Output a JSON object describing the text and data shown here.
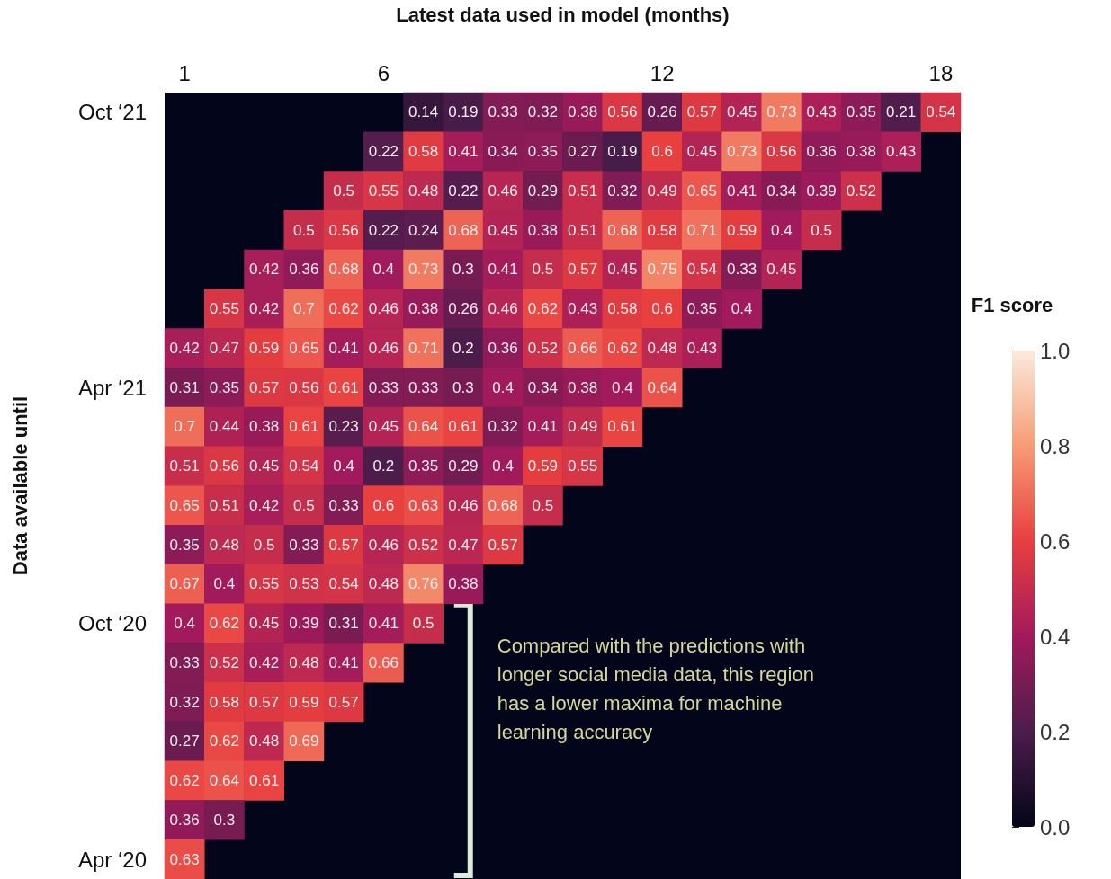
{
  "chart_data": {
    "type": "heatmap",
    "xlabel": "Latest data used in model (months)",
    "ylabel": "Data available until",
    "clabel": "F1 score",
    "categories": [
      "1",
      null,
      null,
      null,
      null,
      "6",
      null,
      null,
      null,
      null,
      null,
      null,
      "12",
      null,
      null,
      null,
      null,
      null,
      null,
      "18"
    ],
    "y_categories": [
      "Oct ‘21",
      null,
      null,
      null,
      null,
      null,
      null,
      "Apr ‘21",
      null,
      null,
      null,
      null,
      null,
      "Oct ‘20",
      null,
      null,
      null,
      null,
      null,
      "Apr ‘20"
    ],
    "cells": [
      [
        null,
        null,
        null,
        null,
        null,
        null,
        0.14,
        0.19,
        0.33,
        0.32,
        0.38,
        0.56,
        0.26,
        0.57,
        0.45,
        0.73,
        0.43,
        0.35,
        0.21,
        0.54
      ],
      [
        null,
        null,
        null,
        null,
        null,
        0.22,
        0.58,
        0.41,
        0.34,
        0.35,
        0.27,
        0.19,
        0.6,
        0.45,
        0.73,
        0.56,
        0.36,
        0.38,
        0.43,
        null
      ],
      [
        null,
        null,
        null,
        null,
        0.5,
        0.55,
        0.48,
        0.22,
        0.46,
        0.29,
        0.51,
        0.32,
        0.49,
        0.65,
        0.41,
        0.34,
        0.39,
        0.52,
        null,
        null
      ],
      [
        null,
        null,
        null,
        0.5,
        0.56,
        0.22,
        0.24,
        0.68,
        0.45,
        0.38,
        0.51,
        0.68,
        0.58,
        0.71,
        0.59,
        0.4,
        0.5,
        null,
        null,
        null
      ],
      [
        null,
        null,
        0.42,
        0.36,
        0.68,
        0.4,
        0.73,
        0.3,
        0.41,
        0.5,
        0.57,
        0.45,
        0.75,
        0.54,
        0.33,
        0.45,
        null,
        null,
        null,
        null
      ],
      [
        null,
        0.55,
        0.42,
        0.7,
        0.62,
        0.46,
        0.38,
        0.26,
        0.46,
        0.62,
        0.43,
        0.58,
        0.6,
        0.35,
        0.4,
        null,
        null,
        null,
        null,
        null
      ],
      [
        0.42,
        0.47,
        0.59,
        0.65,
        0.41,
        0.46,
        0.71,
        0.2,
        0.36,
        0.52,
        0.66,
        0.62,
        0.48,
        0.43,
        null,
        null,
        null,
        null,
        null,
        null
      ],
      [
        0.31,
        0.35,
        0.57,
        0.56,
        0.61,
        0.33,
        0.33,
        0.3,
        0.4,
        0.34,
        0.38,
        0.4,
        0.64,
        null,
        null,
        null,
        null,
        null,
        null,
        null
      ],
      [
        0.7,
        0.44,
        0.38,
        0.61,
        0.23,
        0.45,
        0.64,
        0.61,
        0.32,
        0.41,
        0.49,
        0.61,
        null,
        null,
        null,
        null,
        null,
        null,
        null,
        null
      ],
      [
        0.51,
        0.56,
        0.45,
        0.54,
        0.4,
        0.2,
        0.35,
        0.29,
        0.4,
        0.59,
        0.55,
        null,
        null,
        null,
        null,
        null,
        null,
        null,
        null,
        null
      ],
      [
        0.65,
        0.51,
        0.42,
        0.5,
        0.33,
        0.6,
        0.63,
        0.46,
        0.68,
        0.5,
        null,
        null,
        null,
        null,
        null,
        null,
        null,
        null,
        null,
        null
      ],
      [
        0.35,
        0.48,
        0.5,
        0.33,
        0.57,
        0.46,
        0.52,
        0.47,
        0.57,
        null,
        null,
        null,
        null,
        null,
        null,
        null,
        null,
        null,
        null,
        null
      ],
      [
        0.67,
        0.4,
        0.55,
        0.53,
        0.54,
        0.48,
        0.76,
        0.38,
        null,
        null,
        null,
        null,
        null,
        null,
        null,
        null,
        null,
        null,
        null,
        null
      ],
      [
        0.4,
        0.62,
        0.45,
        0.39,
        0.31,
        0.41,
        0.5,
        null,
        null,
        null,
        null,
        null,
        null,
        null,
        null,
        null,
        null,
        null,
        null,
        null
      ],
      [
        0.33,
        0.52,
        0.42,
        0.48,
        0.41,
        0.66,
        null,
        null,
        null,
        null,
        null,
        null,
        null,
        null,
        null,
        null,
        null,
        null,
        null,
        null
      ],
      [
        0.32,
        0.58,
        0.57,
        0.59,
        0.57,
        null,
        null,
        null,
        null,
        null,
        null,
        null,
        null,
        null,
        null,
        null,
        null,
        null,
        null,
        null
      ],
      [
        0.27,
        0.62,
        0.48,
        0.69,
        null,
        null,
        null,
        null,
        null,
        null,
        null,
        null,
        null,
        null,
        null,
        null,
        null,
        null,
        null,
        null
      ],
      [
        0.62,
        0.64,
        0.61,
        null,
        null,
        null,
        null,
        null,
        null,
        null,
        null,
        null,
        null,
        null,
        null,
        null,
        null,
        null,
        null,
        null
      ],
      [
        0.36,
        0.3,
        null,
        null,
        null,
        null,
        null,
        null,
        null,
        null,
        null,
        null,
        null,
        null,
        null,
        null,
        null,
        null,
        null,
        null
      ],
      [
        0.63,
        null,
        null,
        null,
        null,
        null,
        null,
        null,
        null,
        null,
        null,
        null,
        null,
        null,
        null,
        null,
        null,
        null,
        null,
        null
      ]
    ],
    "data_labels": true,
    "clim": [
      0,
      1
    ],
    "cticks": [
      {
        "value": 0,
        "label": "0.0"
      },
      0.2,
      0.4,
      0.6,
      0.8,
      {
        "value": 1,
        "label": "1.0"
      }
    ],
    "annotations": [
      "Compared with the predictions with longer social media data, this region has a lower maxima for machine learning accuracy"
    ]
  }
}
